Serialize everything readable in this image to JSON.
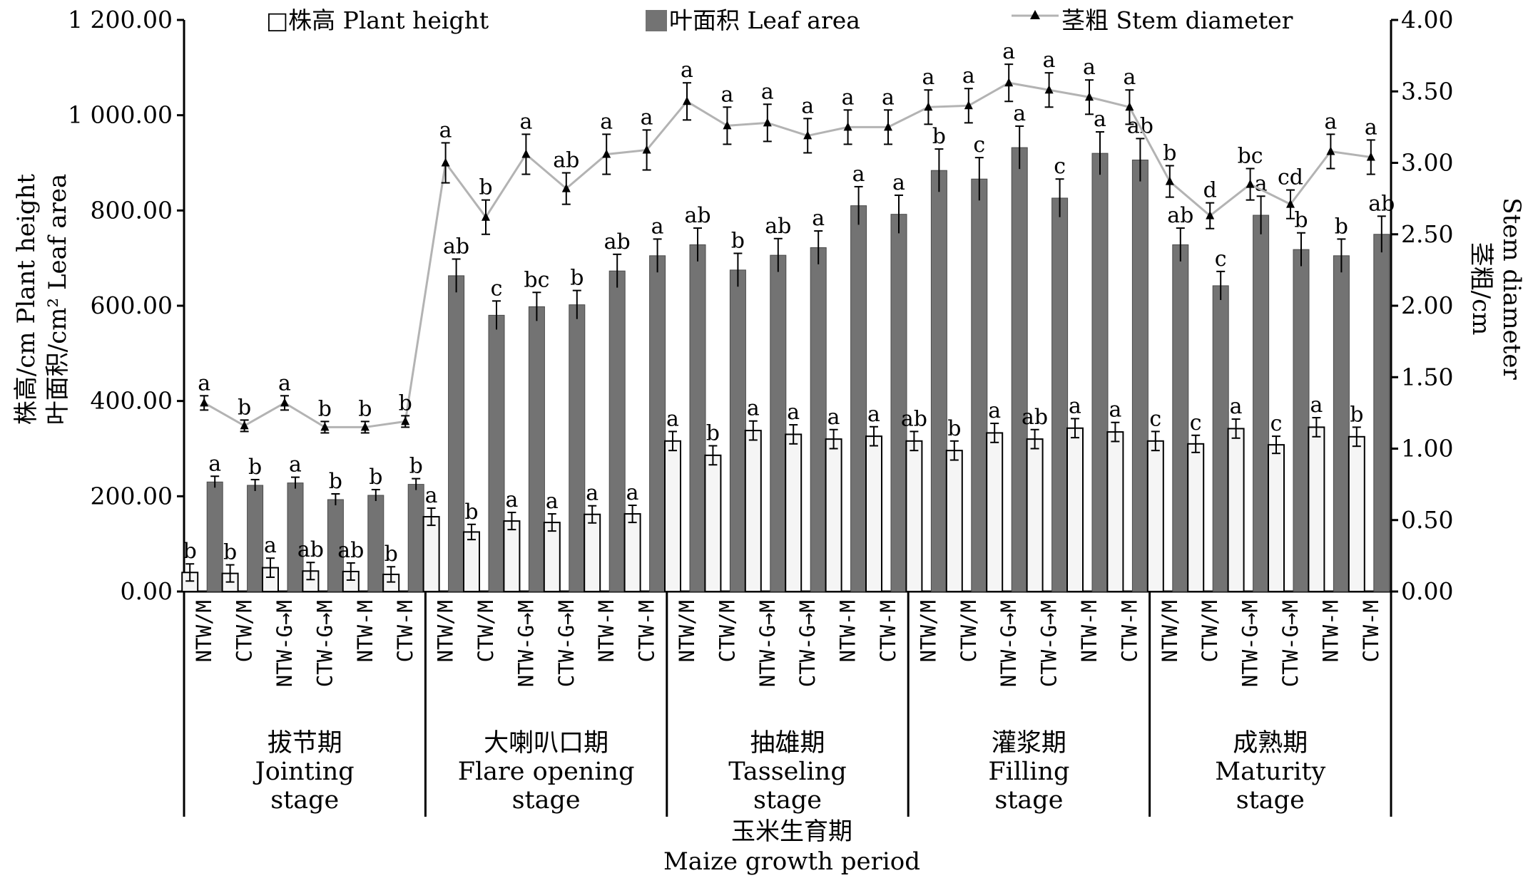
{
  "chart_data": {
    "type": "bar",
    "legend": {
      "placement": "top",
      "items": [
        {
          "label": "□株高 Plant height",
          "marker": "hollow-square"
        },
        {
          "label": "叶面积 Leaf area",
          "marker": "filled-square"
        },
        {
          "label": "茎粗 Stem diameter",
          "marker": "line-triangle"
        }
      ]
    },
    "y_left": {
      "label_line1": "株高/cm Plant height",
      "label_line2": "叶面积/cm² Leaf area",
      "range": [
        0,
        1200
      ],
      "ticks": [
        "0.00",
        "200.00",
        "400.00",
        "600.00",
        "800.00",
        "1 000.00",
        "1 200.00"
      ]
    },
    "y_right": {
      "label_line1": "茎粗/cm",
      "label_line2": "Stem diameter",
      "range": [
        0,
        4
      ],
      "ticks": [
        "0.00",
        "0.50",
        "1.00",
        "1.50",
        "2.00",
        "2.50",
        "3.00",
        "3.50",
        "4.00"
      ]
    },
    "x_title": {
      "zh": "玉米生育期",
      "en": "Maize growth period"
    },
    "treatments": [
      "NTW/M",
      "CTW/M",
      "NTW-G→M",
      "CTW-G→M",
      "NTW-M",
      "CTW-M"
    ],
    "stages": [
      {
        "zh": "拔节期",
        "en": [
          "Jointing",
          "stage"
        ]
      },
      {
        "zh": "大喇叭口期",
        "en": [
          "Flare opening",
          "stage"
        ]
      },
      {
        "zh": "抽雄期",
        "en": [
          "Tasseling",
          "stage"
        ]
      },
      {
        "zh": "灌浆期",
        "en": [
          "Filling",
          "stage"
        ]
      },
      {
        "zh": "成熟期",
        "en": [
          "Maturity",
          "stage"
        ]
      }
    ],
    "series": [
      {
        "name": "株高 Plant height",
        "axis": "left",
        "color": "#f5f5f5",
        "values": [
          40,
          38,
          50,
          43,
          42,
          36,
          157,
          125,
          148,
          145,
          162,
          163,
          316,
          286,
          338,
          330,
          320,
          326,
          316,
          296,
          333,
          320,
          343,
          335,
          316,
          310,
          342,
          308,
          345,
          325
        ],
        "errors": [
          18,
          18,
          20,
          18,
          18,
          16,
          18,
          16,
          18,
          18,
          18,
          18,
          20,
          20,
          20,
          20,
          20,
          20,
          20,
          20,
          20,
          20,
          20,
          20,
          20,
          18,
          20,
          18,
          20,
          20
        ],
        "significance": [
          "b",
          "b",
          "a",
          "ab",
          "ab",
          "b",
          "a",
          "b",
          "a",
          "a",
          "a",
          "a",
          "a",
          "b",
          "a",
          "a",
          "a",
          "a",
          "ab",
          "b",
          "a",
          "ab",
          "a",
          "a",
          "c",
          "c",
          "a",
          "c",
          "a",
          "b"
        ]
      },
      {
        "name": "叶面积 Leaf area",
        "axis": "left",
        "color": "#737373",
        "values": [
          230,
          223,
          228,
          193,
          202,
          225,
          663,
          580,
          598,
          602,
          673,
          705,
          728,
          675,
          706,
          722,
          810,
          792,
          884,
          866,
          932,
          826,
          920,
          906,
          728,
          642,
          790,
          718,
          705,
          750
        ],
        "errors": [
          12,
          12,
          12,
          12,
          12,
          12,
          35,
          30,
          30,
          30,
          35,
          35,
          35,
          35,
          35,
          35,
          40,
          40,
          45,
          45,
          45,
          40,
          45,
          45,
          35,
          30,
          40,
          35,
          35,
          38
        ],
        "significance": [
          "a",
          "b",
          "a",
          "b",
          "b",
          "b",
          "ab",
          "c",
          "bc",
          "b",
          "ab",
          "a",
          "ab",
          "b",
          "ab",
          "a",
          "a",
          "a",
          "b",
          "c",
          "a",
          "c",
          "a",
          "ab",
          "ab",
          "c",
          "a",
          "b",
          "b",
          "ab"
        ]
      },
      {
        "name": "茎粗 Stem diameter",
        "axis": "right",
        "color": "#b3b3b3",
        "values": [
          1.32,
          1.16,
          1.32,
          1.15,
          1.15,
          1.19,
          3.0,
          2.62,
          3.06,
          2.82,
          3.06,
          3.09,
          3.43,
          3.26,
          3.28,
          3.19,
          3.25,
          3.25,
          3.39,
          3.4,
          3.56,
          3.51,
          3.46,
          3.39,
          2.87,
          2.63,
          2.85,
          2.71,
          3.08,
          3.04
        ],
        "errors": [
          0.05,
          0.04,
          0.05,
          0.04,
          0.04,
          0.04,
          0.14,
          0.12,
          0.14,
          0.11,
          0.14,
          0.14,
          0.13,
          0.13,
          0.13,
          0.12,
          0.12,
          0.12,
          0.12,
          0.12,
          0.13,
          0.12,
          0.12,
          0.12,
          0.11,
          0.09,
          0.11,
          0.1,
          0.12,
          0.12
        ],
        "significance": [
          "a",
          "b",
          "a",
          "b",
          "b",
          "b",
          "a",
          "b",
          "a",
          "ab",
          "a",
          "a",
          "a",
          "a",
          "a",
          "a",
          "a",
          "a",
          "a",
          "a",
          "a",
          "a",
          "a",
          "a",
          "b",
          "d",
          "bc",
          "cd",
          "a",
          "a"
        ]
      }
    ]
  }
}
